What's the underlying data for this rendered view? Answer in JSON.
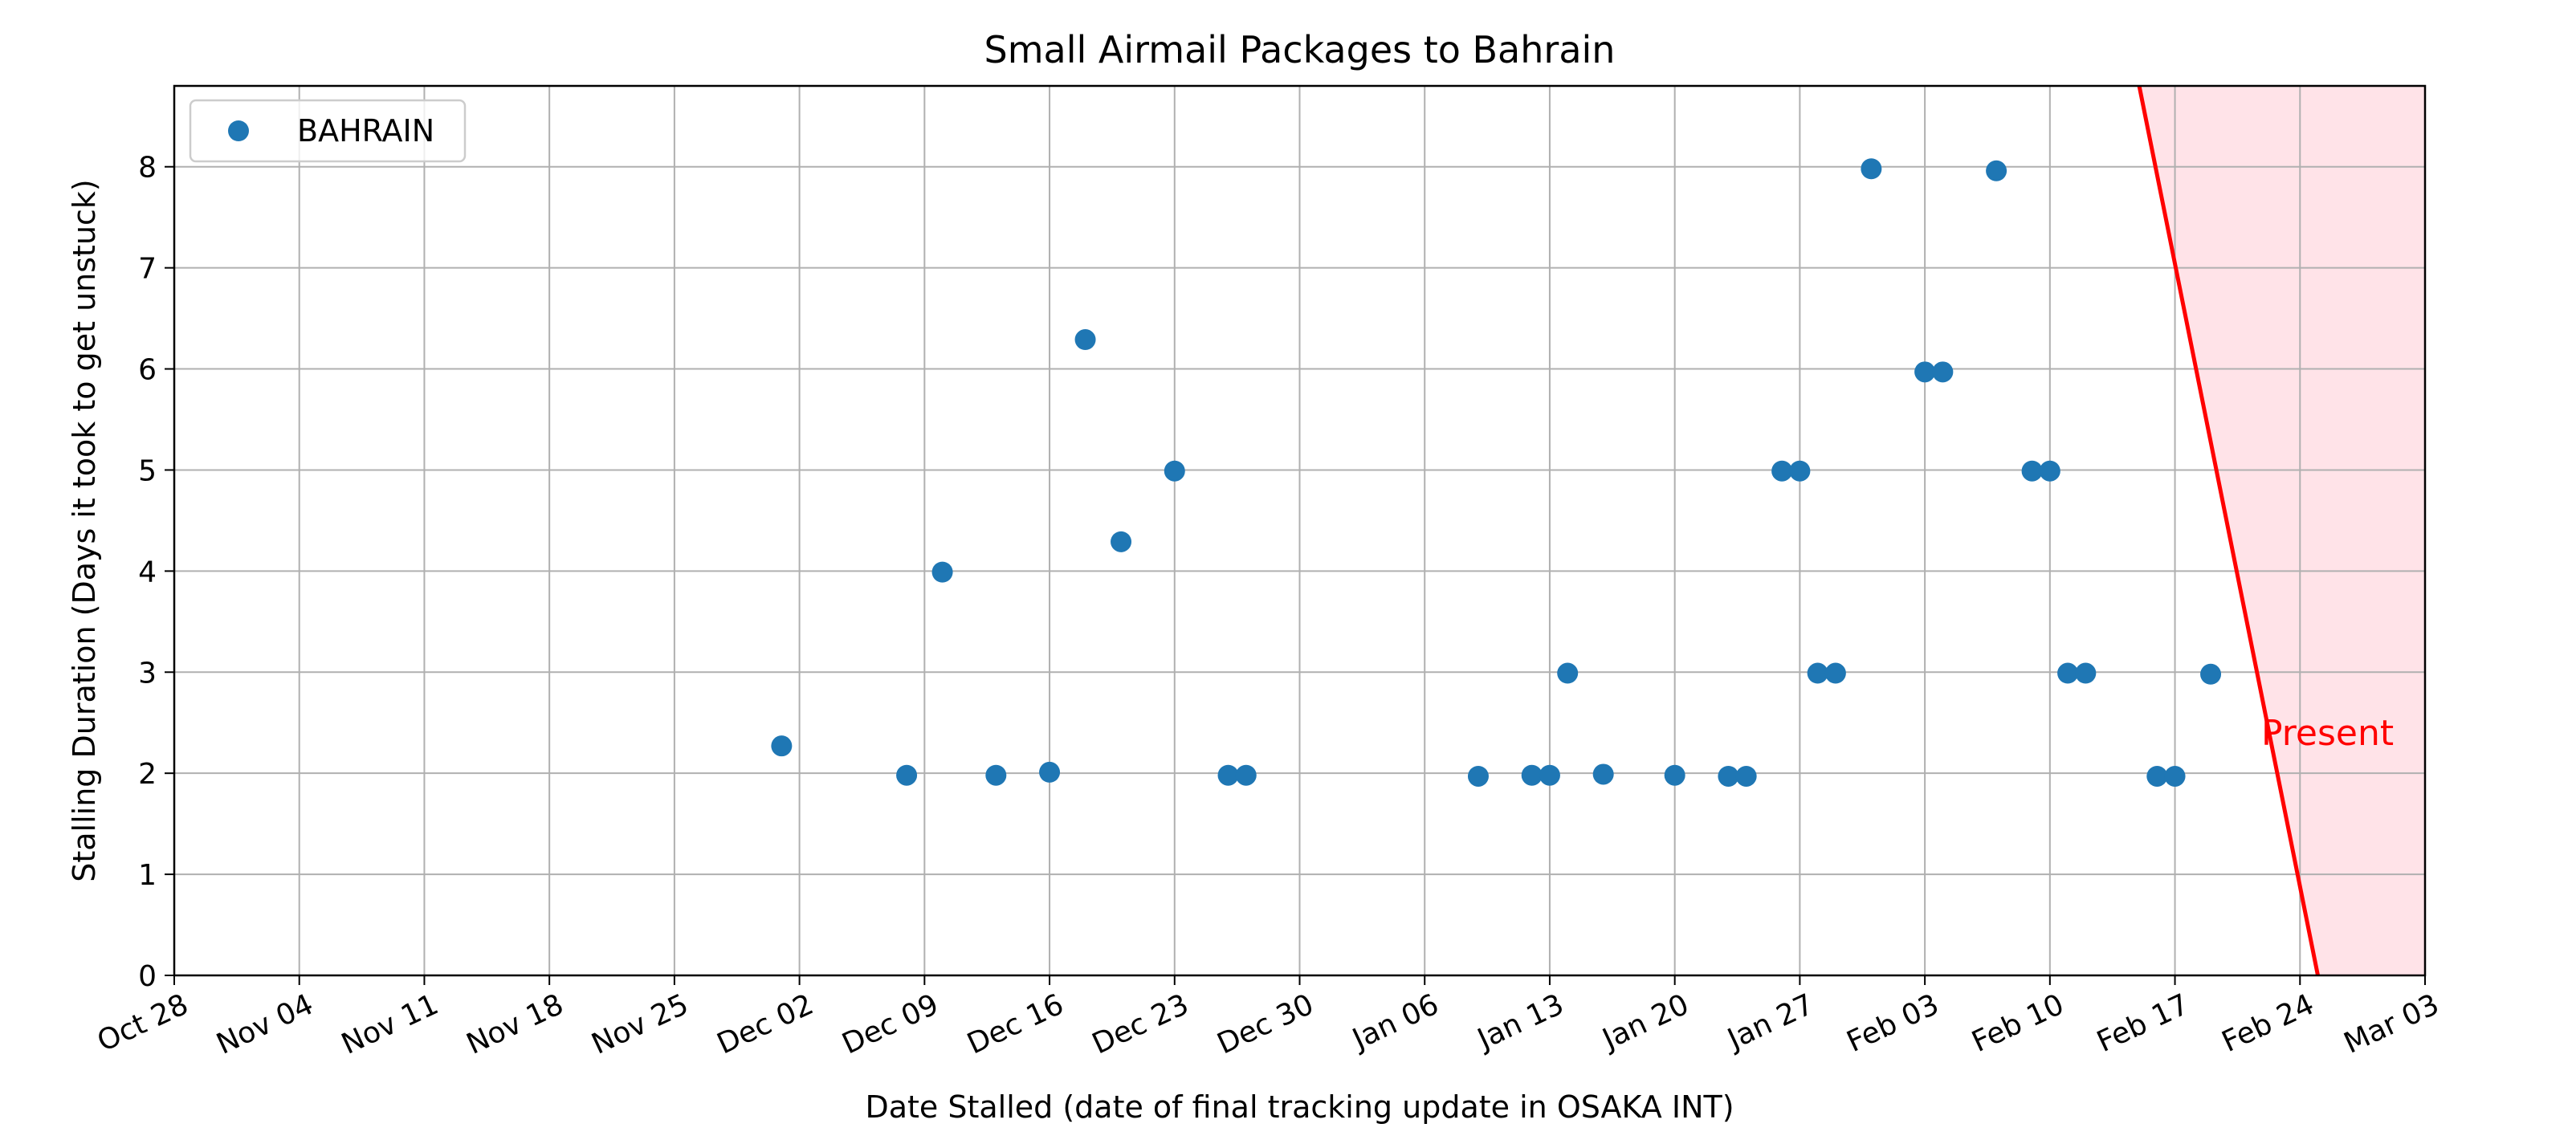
{
  "chart_data": {
    "type": "scatter",
    "title": "Small Airmail Packages to Bahrain",
    "xlabel": "Date Stalled (date of final tracking update in OSAKA INT)",
    "ylabel": "Stalling Duration (Days it took to get unstuck)",
    "x_axis_type": "date",
    "xlim": [
      "2024-10-28",
      "2025-03-03"
    ],
    "ylim": [
      0,
      8.8
    ],
    "x_tick_labels": [
      "Oct 28",
      "Nov 04",
      "Nov 11",
      "Nov 18",
      "Nov 25",
      "Dec 02",
      "Dec 09",
      "Dec 16",
      "Dec 23",
      "Dec 30",
      "Jan 06",
      "Jan 13",
      "Jan 20",
      "Jan 27",
      "Feb 03",
      "Feb 10",
      "Feb 17",
      "Feb 24",
      "Mar 03"
    ],
    "y_ticks": [
      0,
      1,
      2,
      3,
      4,
      5,
      6,
      7,
      8
    ],
    "grid": true,
    "legend_position": "top-left",
    "series": [
      {
        "name": "BAHRAIN",
        "color": "#1f77b4",
        "points": [
          {
            "x": "2024-12-01",
            "y": 2.27
          },
          {
            "x": "2024-12-08",
            "y": 1.98
          },
          {
            "x": "2024-12-10",
            "y": 3.99
          },
          {
            "x": "2024-12-13",
            "y": 1.98
          },
          {
            "x": "2024-12-16",
            "y": 2.01
          },
          {
            "x": "2024-12-18",
            "y": 6.29
          },
          {
            "x": "2024-12-20",
            "y": 4.29
          },
          {
            "x": "2024-12-23",
            "y": 4.99
          },
          {
            "x": "2024-12-26",
            "y": 1.98
          },
          {
            "x": "2024-12-27",
            "y": 1.98
          },
          {
            "x": "2025-01-09",
            "y": 1.97
          },
          {
            "x": "2025-01-12",
            "y": 1.98
          },
          {
            "x": "2025-01-13",
            "y": 1.98
          },
          {
            "x": "2025-01-14",
            "y": 2.99
          },
          {
            "x": "2025-01-16",
            "y": 1.99
          },
          {
            "x": "2025-01-20",
            "y": 1.98
          },
          {
            "x": "2025-01-23",
            "y": 1.97
          },
          {
            "x": "2025-01-24",
            "y": 1.97
          },
          {
            "x": "2025-01-26",
            "y": 4.99
          },
          {
            "x": "2025-01-27",
            "y": 4.99
          },
          {
            "x": "2025-01-28",
            "y": 2.99
          },
          {
            "x": "2025-01-29",
            "y": 2.99
          },
          {
            "x": "2025-01-31",
            "y": 7.98
          },
          {
            "x": "2025-02-03",
            "y": 5.97
          },
          {
            "x": "2025-02-04",
            "y": 5.97
          },
          {
            "x": "2025-02-07",
            "y": 7.96
          },
          {
            "x": "2025-02-09",
            "y": 4.99
          },
          {
            "x": "2025-02-10",
            "y": 4.99
          },
          {
            "x": "2025-02-11",
            "y": 2.99
          },
          {
            "x": "2025-02-12",
            "y": 2.99
          },
          {
            "x": "2025-02-16",
            "y": 1.97
          },
          {
            "x": "2025-02-17",
            "y": 1.97
          },
          {
            "x": "2025-02-19",
            "y": 2.98
          }
        ]
      }
    ],
    "annotations": [
      {
        "text": "Present",
        "color": "#ff0000",
        "line_top": {
          "x": "2025-02-15",
          "y": 8.8
        },
        "line_bottom": {
          "x": "2025-02-25",
          "y": 0
        },
        "shade_color": "#ffc0cb",
        "shade_opacity": 0.45,
        "label_position": {
          "x": "2025-02-23",
          "y": 2.4
        }
      }
    ]
  }
}
